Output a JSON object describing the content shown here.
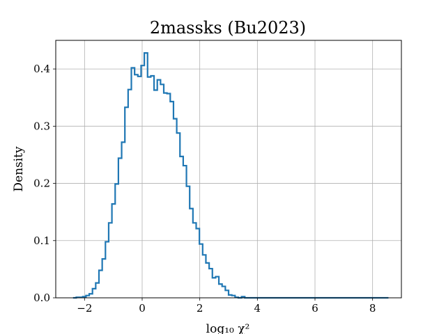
{
  "chart_data": {
    "type": "histogram",
    "title": "2massks (Bu2023)",
    "xlabel": "log₁₀ χ²",
    "ylabel": "Density",
    "xlim": [
      -3.0,
      9.0
    ],
    "ylim": [
      0.0,
      0.45
    ],
    "xticks": [
      -2,
      0,
      2,
      4,
      6,
      8
    ],
    "xtick_labels": [
      "−2",
      "0",
      "2",
      "4",
      "6",
      "8"
    ],
    "yticks": [
      0.0,
      0.1,
      0.2,
      0.3,
      0.4
    ],
    "ytick_labels": [
      "0.0",
      "0.1",
      "0.2",
      "0.3",
      "0.4"
    ],
    "grid": true,
    "line_color": "#1f77b4",
    "bin_width": 0.1125,
    "x_start": -2.4,
    "x_end": 8.55,
    "density": [
      0.0,
      0.001,
      0.001,
      0.002,
      0.004,
      0.007,
      0.016,
      0.026,
      0.048,
      0.068,
      0.098,
      0.131,
      0.164,
      0.199,
      0.244,
      0.272,
      0.333,
      0.364,
      0.402,
      0.39,
      0.387,
      0.406,
      0.428,
      0.386,
      0.388,
      0.363,
      0.381,
      0.373,
      0.358,
      0.357,
      0.343,
      0.313,
      0.288,
      0.247,
      0.231,
      0.195,
      0.156,
      0.131,
      0.121,
      0.094,
      0.075,
      0.061,
      0.051,
      0.035,
      0.037,
      0.024,
      0.02,
      0.013,
      0.005,
      0.004,
      0.001,
      0.0,
      0.002,
      0.0
    ]
  }
}
